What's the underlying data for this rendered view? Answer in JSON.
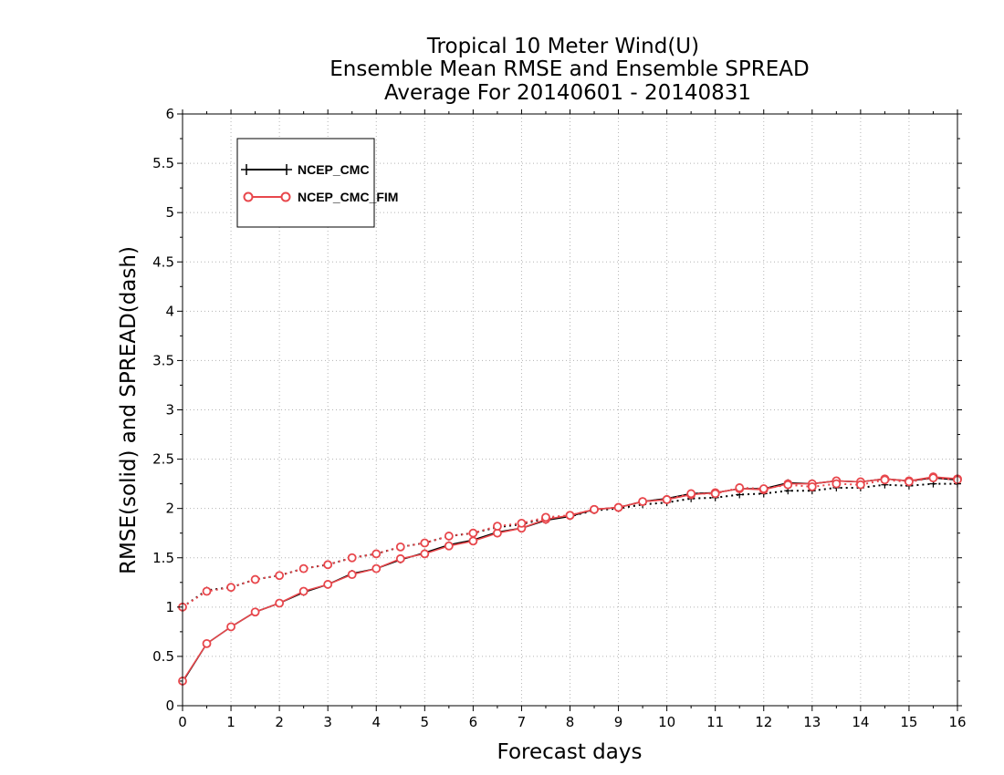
{
  "chart_data": {
    "type": "line",
    "title": [
      "Tropical 10 Meter Wind(U)",
      "Ensemble Mean RMSE and Ensemble SPREAD",
      "Average For 20140601 - 20140831"
    ],
    "xlabel": "Forecast days",
    "ylabel": "RMSE(solid) and SPREAD(dash)",
    "xlim": [
      0,
      16
    ],
    "ylim": [
      0,
      6
    ],
    "xticks": [
      0,
      1,
      2,
      3,
      4,
      5,
      6,
      7,
      8,
      9,
      10,
      11,
      12,
      13,
      14,
      15,
      16
    ],
    "xtick_labels": [
      "0",
      "1",
      "2",
      "3",
      "4",
      "5",
      "6",
      "7",
      "8",
      "9",
      "10",
      "11",
      "12",
      "13",
      "14",
      "15",
      "16"
    ],
    "yticks": [
      0,
      0.5,
      1,
      1.5,
      2,
      2.5,
      3,
      3.5,
      4,
      4.5,
      5,
      5.5,
      6
    ],
    "ytick_labels": [
      "0",
      "0.5",
      "1",
      "1.5",
      "2",
      "2.5",
      "3",
      "3.5",
      "4",
      "4.5",
      "5",
      "5.5",
      "6"
    ],
    "grid": true,
    "legend_position": "top-left",
    "x": [
      0,
      0.5,
      1,
      1.5,
      2,
      2.5,
      3,
      3.5,
      4,
      4.5,
      5,
      5.5,
      6,
      6.5,
      7,
      7.5,
      8,
      8.5,
      9,
      9.5,
      10,
      10.5,
      11,
      11.5,
      12,
      12.5,
      13,
      13.5,
      14,
      14.5,
      15,
      15.5,
      16
    ],
    "series": [
      {
        "name": "NCEP_CMC",
        "color": "#000000",
        "marker": "plus",
        "rmse": [
          0.24,
          0.63,
          0.8,
          0.95,
          1.04,
          1.15,
          1.23,
          1.34,
          1.39,
          1.48,
          1.55,
          1.63,
          1.68,
          1.76,
          1.8,
          1.88,
          1.92,
          1.99,
          2.01,
          2.07,
          2.1,
          2.15,
          2.16,
          2.2,
          2.2,
          2.26,
          2.25,
          2.28,
          2.27,
          2.3,
          2.28,
          2.31,
          2.29
        ],
        "spread": [
          1.0,
          1.17,
          1.2,
          1.28,
          1.32,
          1.39,
          1.43,
          1.5,
          1.54,
          1.61,
          1.65,
          1.72,
          1.75,
          1.81,
          1.84,
          1.9,
          1.92,
          1.98,
          2.0,
          2.04,
          2.06,
          2.1,
          2.11,
          2.14,
          2.15,
          2.18,
          2.18,
          2.21,
          2.21,
          2.24,
          2.23,
          2.25,
          2.25
        ]
      },
      {
        "name": "NCEP_CMC_FIM",
        "color": "#e8474c",
        "marker": "circle",
        "rmse": [
          0.25,
          0.63,
          0.8,
          0.95,
          1.04,
          1.16,
          1.23,
          1.33,
          1.39,
          1.49,
          1.54,
          1.62,
          1.67,
          1.75,
          1.8,
          1.89,
          1.93,
          1.99,
          2.01,
          2.07,
          2.09,
          2.14,
          2.16,
          2.2,
          2.19,
          2.25,
          2.25,
          2.28,
          2.27,
          2.3,
          2.28,
          2.32,
          2.3
        ],
        "spread": [
          1.0,
          1.16,
          1.2,
          1.28,
          1.32,
          1.39,
          1.43,
          1.5,
          1.54,
          1.61,
          1.65,
          1.72,
          1.75,
          1.82,
          1.85,
          1.91,
          1.93,
          1.99,
          2.01,
          2.07,
          2.09,
          2.15,
          2.15,
          2.21,
          2.2,
          2.24,
          2.22,
          2.25,
          2.24,
          2.29,
          2.27,
          2.31,
          2.29
        ]
      }
    ]
  }
}
